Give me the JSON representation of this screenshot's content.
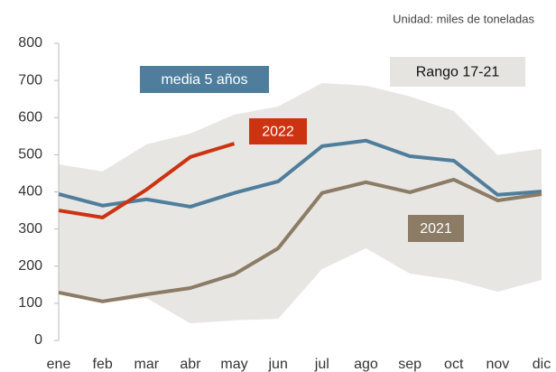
{
  "chart_data": {
    "type": "line",
    "note": "Unidad: miles de toneladas",
    "categories": [
      "ene",
      "feb",
      "mar",
      "abr",
      "may",
      "jun",
      "jul",
      "ago",
      "sep",
      "oct",
      "nov",
      "dic"
    ],
    "range": {
      "name": "Rango 17-21",
      "color": "#e8e6e3",
      "low": [
        127,
        102,
        114,
        46,
        54,
        58,
        192,
        248,
        180,
        163,
        131,
        163
      ],
      "high": [
        474,
        455,
        528,
        557,
        608,
        630,
        693,
        686,
        657,
        618,
        499,
        516
      ]
    },
    "series": [
      {
        "name": "media 5 años",
        "color": "#4f7e9c",
        "values": [
          394,
          363,
          380,
          360,
          397,
          428,
          523,
          538,
          496,
          484,
          392,
          401
        ]
      },
      {
        "name": "2021",
        "color": "#8c7b65",
        "values": [
          129,
          105,
          124,
          141,
          178,
          248,
          397,
          426,
          399,
          433,
          377,
          394
        ]
      },
      {
        "name": "2022",
        "color": "#cc3311",
        "values": [
          350,
          331,
          406,
          494,
          530,
          null,
          null,
          null,
          null,
          null,
          null,
          null
        ]
      }
    ],
    "ylim": [
      0,
      800
    ],
    "yticks": [
      0,
      100,
      200,
      300,
      400,
      500,
      600,
      700,
      800
    ]
  }
}
